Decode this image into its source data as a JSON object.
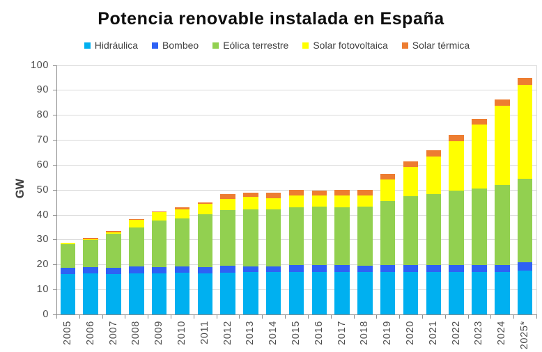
{
  "title": "Potencia renovable instalada en España",
  "y_axis_title": "GW",
  "chart_data": {
    "type": "bar",
    "stacked": true,
    "categories": [
      "2005",
      "2006",
      "2007",
      "2008",
      "2009",
      "2010",
      "2011",
      "2012",
      "2013",
      "2014",
      "2015",
      "2016",
      "2017",
      "2018",
      "2019",
      "2020",
      "2021",
      "2022",
      "2023",
      "2024",
      "2025*"
    ],
    "series": [
      {
        "name": "Hidráulica",
        "color": "#00b0f0",
        "values": [
          16.2,
          16.3,
          16.2,
          16.5,
          16.4,
          16.6,
          16.3,
          16.8,
          17.0,
          16.9,
          17.1,
          17.1,
          17.1,
          17.1,
          17.1,
          17.1,
          17.1,
          17.1,
          17.1,
          17.1,
          17.4
        ]
      },
      {
        "name": "Bombeo",
        "color": "#2e61f5",
        "values": [
          2.5,
          2.7,
          2.5,
          2.8,
          2.6,
          2.7,
          2.7,
          2.7,
          2.3,
          2.3,
          2.6,
          2.6,
          2.6,
          2.5,
          2.8,
          2.8,
          2.8,
          2.8,
          2.8,
          2.8,
          3.5
        ]
      },
      {
        "name": "Eólica terrestre",
        "color": "#92d050",
        "values": [
          9.4,
          10.8,
          13.7,
          15.6,
          18.7,
          19.3,
          21.1,
          22.4,
          22.9,
          22.9,
          23.3,
          23.4,
          23.3,
          23.7,
          25.6,
          27.5,
          28.4,
          29.7,
          30.6,
          31.9,
          33.5
        ]
      },
      {
        "name": "Solar fotovoltaica",
        "color": "#ffff00",
        "values": [
          0.5,
          0.4,
          0.6,
          3.0,
          3.4,
          3.6,
          4.1,
          4.4,
          4.8,
          4.6,
          4.6,
          4.5,
          4.6,
          4.4,
          8.7,
          11.6,
          15.0,
          19.8,
          25.7,
          31.8,
          37.6
        ]
      },
      {
        "name": "Solar térmica",
        "color": "#ed7d31",
        "values": [
          0.0,
          0.4,
          0.5,
          0.3,
          0.3,
          0.6,
          0.8,
          1.9,
          1.9,
          2.1,
          2.2,
          2.1,
          2.3,
          2.2,
          2.2,
          2.5,
          2.6,
          2.6,
          2.3,
          2.6,
          2.8
        ]
      }
    ],
    "ylabel": "GW",
    "xlabel": "",
    "ylim": [
      0,
      100
    ],
    "ytick_step": 10,
    "grid": true,
    "legend_position": "top"
  }
}
